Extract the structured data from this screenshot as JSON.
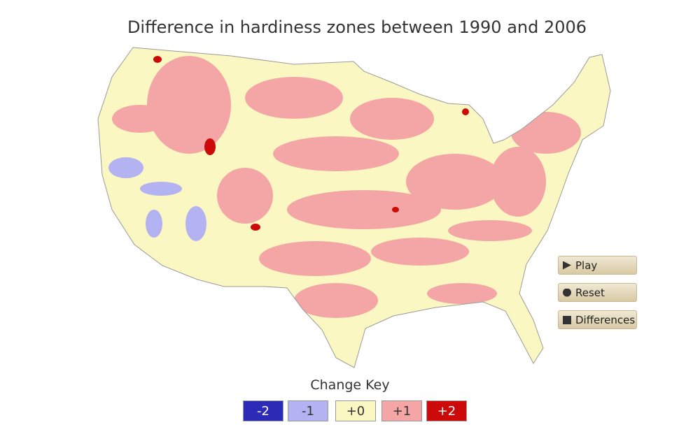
{
  "header": {
    "title": "Difference in hardiness zones between 1990 and 2006"
  },
  "controls": {
    "buttons": [
      {
        "label": "Play"
      },
      {
        "label": "Reset"
      },
      {
        "label": "Differences"
      }
    ]
  },
  "legend": {
    "title": "Change Key",
    "items": [
      {
        "label": "-2",
        "color": "#2b2bb8"
      },
      {
        "label": "-1",
        "color": "#b3b3f2"
      },
      {
        "label": "+0",
        "color": "#fbf7c2"
      },
      {
        "label": "+1",
        "color": "#f4a5a5"
      },
      {
        "label": "+2",
        "color": "#cc0a0a"
      }
    ]
  }
}
